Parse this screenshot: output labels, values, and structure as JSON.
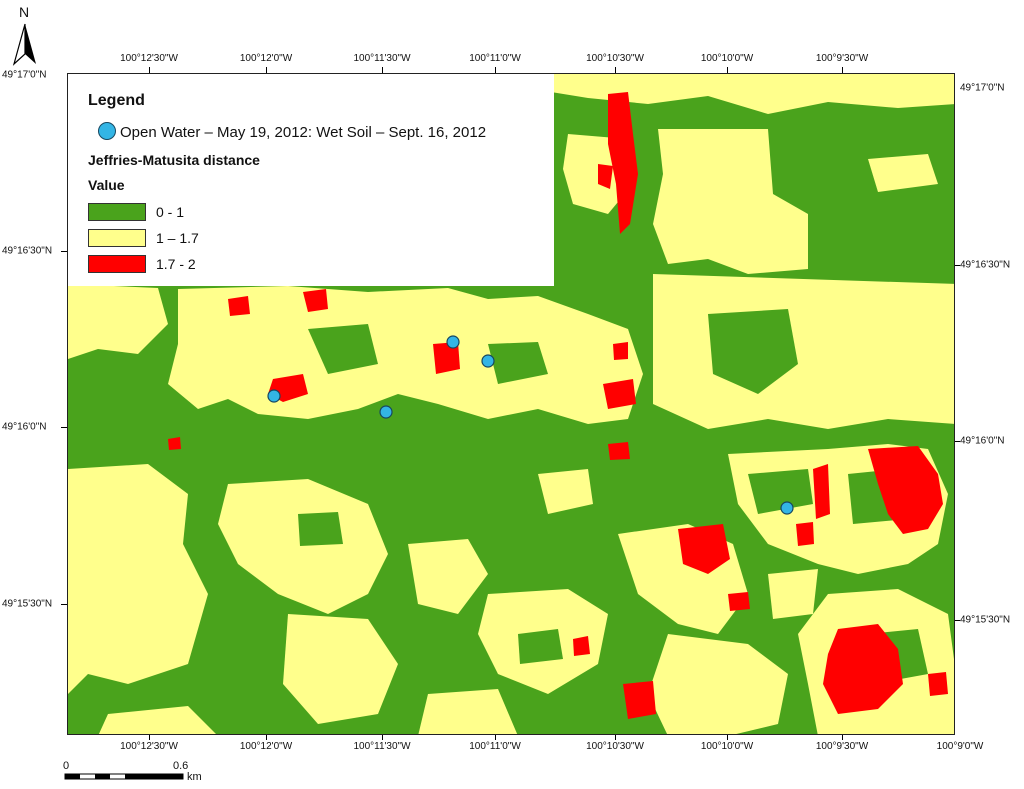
{
  "north_label": "N",
  "colors": {
    "class_low": "#4aa31c",
    "class_mid": "#ffff8c",
    "class_high": "#ff0000",
    "point_fill": "#33b5e5",
    "point_stroke": "#17475f"
  },
  "legend": {
    "title": "Legend",
    "point_label": "Open Water – May 19, 2012: Wet Soil – Sept. 16, 2012",
    "raster_title": "Jeffries-Matusita distance",
    "value_label": "Value",
    "classes": [
      {
        "label": "0 - 1",
        "color": "#4aa31c"
      },
      {
        "label": "1 – 1.7",
        "color": "#ffff8c"
      },
      {
        "label": "1.7 - 2",
        "color": "#ff0000"
      }
    ]
  },
  "axes": {
    "top_ticks": [
      "100°12'30\"W",
      "100°12'0\"W",
      "100°11'30\"W",
      "100°11'0\"W",
      "100°10'30\"W",
      "100°10'0\"W",
      "100°9'30\"W"
    ],
    "bottom_ticks": [
      "100°12'30\"W",
      "100°12'0\"W",
      "100°11'30\"W",
      "100°11'0\"W",
      "100°10'30\"W",
      "100°10'0\"W",
      "100°9'30\"W",
      "100°9'0\"W"
    ],
    "left_ticks": [
      "49°17'0\"N",
      "49°16'30\"N",
      "49°16'0\"N",
      "49°15'30\"N"
    ],
    "right_ticks": [
      "49°17'0\"N",
      "49°16'30\"N",
      "49°16'0\"N",
      "49°15'30\"N"
    ]
  },
  "scalebar": {
    "start_label": "0",
    "mid_label": "0.6",
    "unit": "km"
  },
  "points_count": 5
}
